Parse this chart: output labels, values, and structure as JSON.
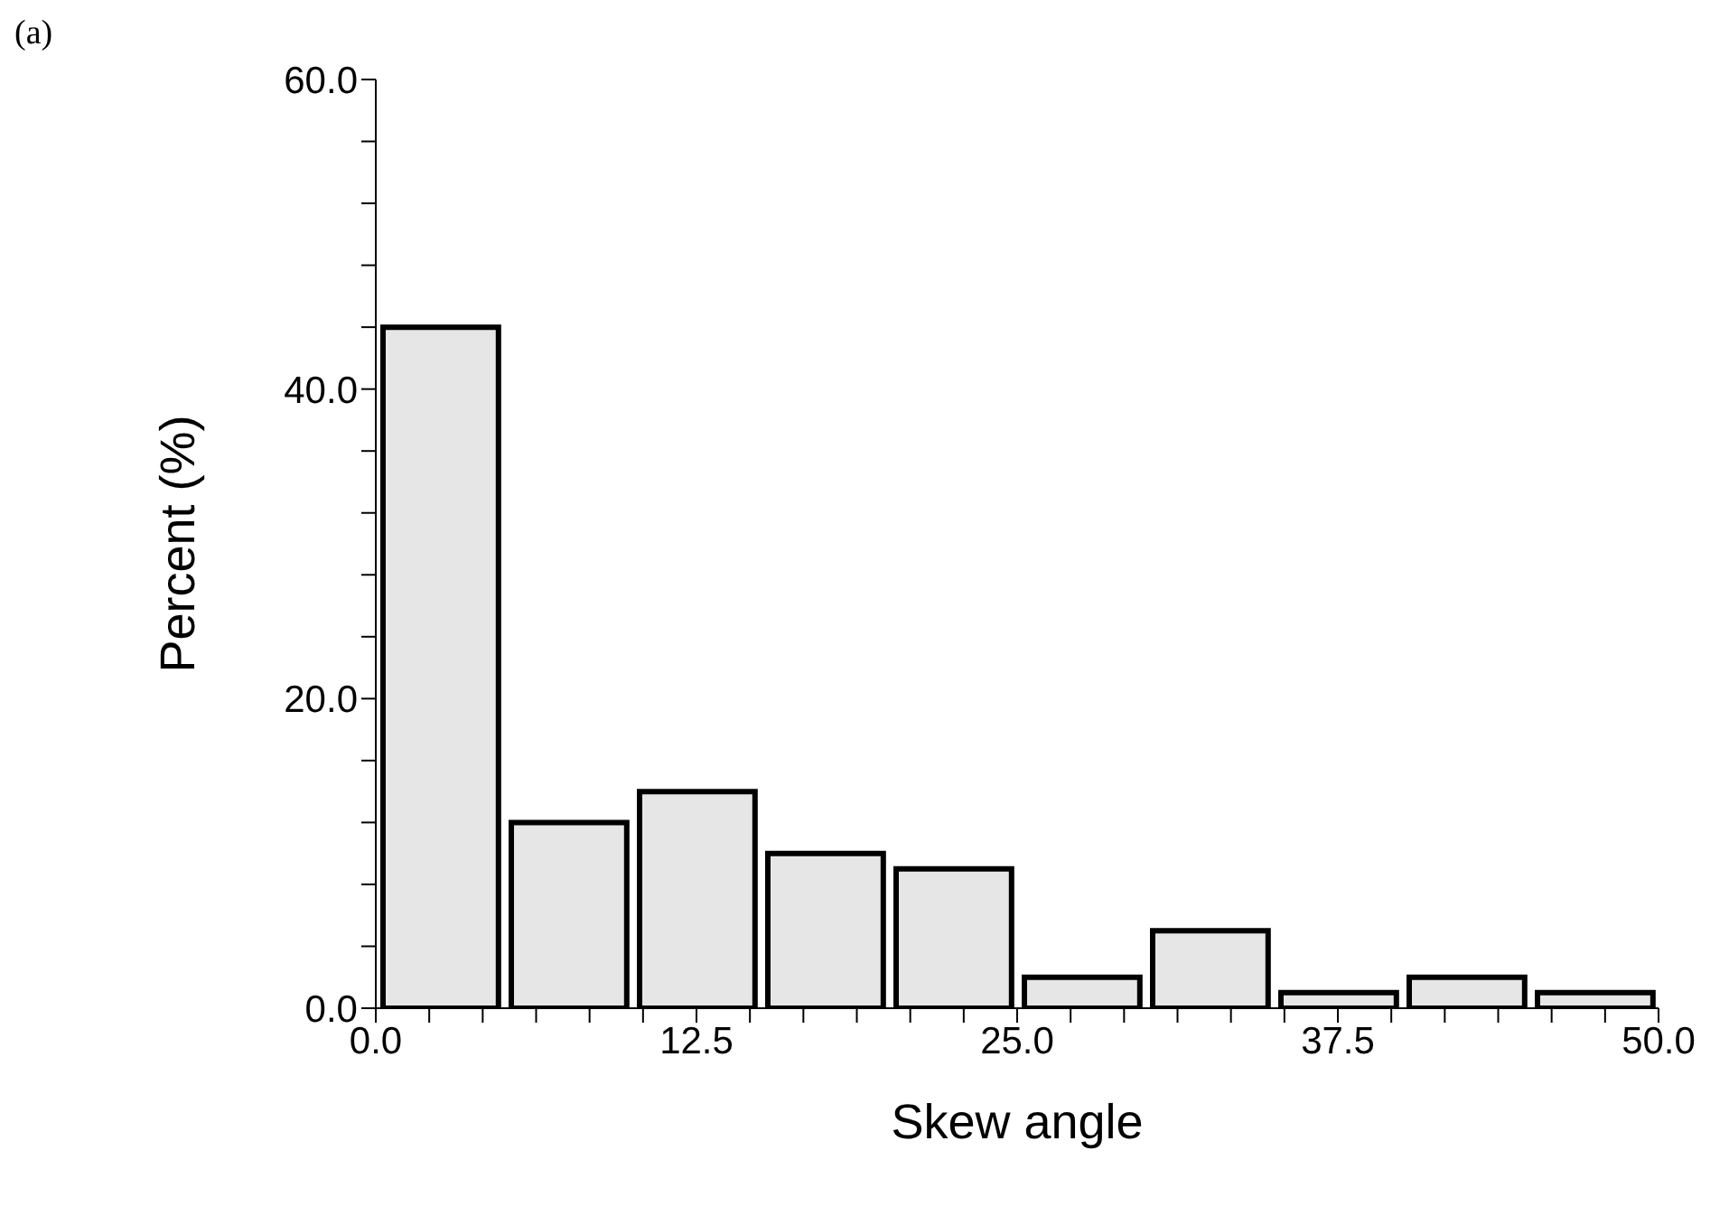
{
  "chart_data": {
    "type": "histogram",
    "xlabel": "Skew angle",
    "ylabel": "Percent (%)",
    "annotations": [
      "(a)"
    ],
    "bins": [
      0,
      5,
      10,
      15,
      20,
      25,
      30,
      35,
      40,
      45,
      50
    ],
    "values": [
      44,
      12,
      14,
      10,
      9,
      2,
      5,
      1,
      2,
      1
    ],
    "color": "#e6e6e6",
    "xlim": [
      0,
      50
    ],
    "xticks": [
      {
        "value": 0,
        "label": "0.0"
      },
      {
        "value": 2.083,
        "label": null
      },
      {
        "value": 4.167,
        "label": null
      },
      {
        "value": 6.25,
        "label": null
      },
      {
        "value": 8.333,
        "label": null
      },
      {
        "value": 10.417,
        "label": null
      },
      {
        "value": 12.5,
        "label": "12.5"
      },
      {
        "value": 14.583,
        "label": null
      },
      {
        "value": 16.667,
        "label": null
      },
      {
        "value": 18.75,
        "label": null
      },
      {
        "value": 20.833,
        "label": null
      },
      {
        "value": 22.917,
        "label": null
      },
      {
        "value": 25,
        "label": "25.0"
      },
      {
        "value": 27.083,
        "label": null
      },
      {
        "value": 29.167,
        "label": null
      },
      {
        "value": 31.25,
        "label": null
      },
      {
        "value": 33.333,
        "label": null
      },
      {
        "value": 35.417,
        "label": null
      },
      {
        "value": 37.5,
        "label": "37.5"
      },
      {
        "value": 39.583,
        "label": null
      },
      {
        "value": 41.667,
        "label": null
      },
      {
        "value": 43.75,
        "label": null
      },
      {
        "value": 45.833,
        "label": null
      },
      {
        "value": 47.917,
        "label": null
      },
      {
        "value": 50,
        "label": "50.0"
      }
    ],
    "ylim": [
      0,
      60
    ],
    "yticks": [
      {
        "value": 0,
        "label": "0.0"
      },
      {
        "value": 4,
        "label": null
      },
      {
        "value": 8,
        "label": null
      },
      {
        "value": 12,
        "label": null
      },
      {
        "value": 16,
        "label": null
      },
      {
        "value": 20,
        "label": "20.0"
      },
      {
        "value": 24,
        "label": null
      },
      {
        "value": 28,
        "label": null
      },
      {
        "value": 32,
        "label": null
      },
      {
        "value": 36,
        "label": null
      },
      {
        "value": 40,
        "label": "40.0"
      },
      {
        "value": 44,
        "label": null
      },
      {
        "value": 48,
        "label": null
      },
      {
        "value": 52,
        "label": null
      },
      {
        "value": 56,
        "label": null
      },
      {
        "value": 60,
        "label": "60.0"
      }
    ],
    "relative": false
  }
}
